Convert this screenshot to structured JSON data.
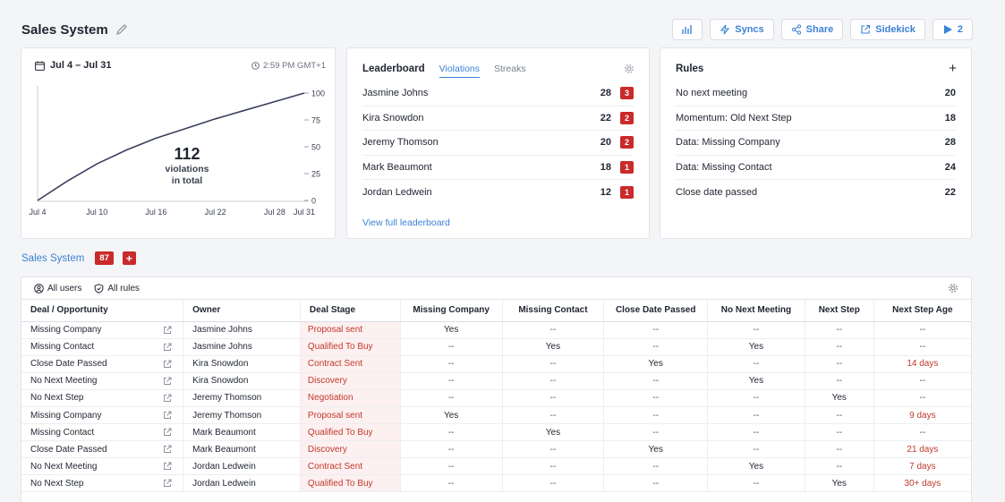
{
  "header": {
    "title": "Sales System",
    "buttons": {
      "syncs": "Syncs",
      "share": "Share",
      "sidekick": "Sidekick",
      "play": "2"
    }
  },
  "chart_card": {
    "date_range": "Jul 4 – Jul 31",
    "time": "2:59 PM GMT+1",
    "total": "112",
    "total_label_1": "violations",
    "total_label_2": "in total"
  },
  "chart_data": {
    "type": "line",
    "x_ticks": [
      "Jul 4",
      "Jul 10",
      "Jul 16",
      "Jul 22",
      "Jul 28",
      "Jul 31"
    ],
    "x_tick_days": [
      0,
      6,
      12,
      18,
      24,
      27
    ],
    "y_ticks": [
      "100",
      "75",
      "50",
      "25",
      "0"
    ],
    "y_tick_values": [
      100,
      75,
      50,
      25,
      0
    ],
    "ylim": [
      0,
      100
    ],
    "x": [
      0,
      3,
      6,
      9,
      12,
      15,
      18,
      21,
      24,
      27
    ],
    "y": [
      0,
      18,
      34,
      47,
      58,
      67,
      76,
      84,
      92,
      100
    ],
    "line_color": "#3a3f5c"
  },
  "leaderboard": {
    "title": "Leaderboard",
    "tabs": [
      "Violations",
      "Streaks"
    ],
    "rows": [
      {
        "name": "Jasmine Johns",
        "value": "28",
        "rank": "3"
      },
      {
        "name": "Kira Snowdon",
        "value": "22",
        "rank": "2"
      },
      {
        "name": "Jeremy Thomson",
        "value": "20",
        "rank": "2"
      },
      {
        "name": "Mark Beaumont",
        "value": "18",
        "rank": "1"
      },
      {
        "name": "Jordan Ledwein",
        "value": "12",
        "rank": "1"
      }
    ],
    "view_link": "View full leaderboard"
  },
  "rules": {
    "title": "Rules",
    "add": "+",
    "rows": [
      {
        "name": "No next meeting",
        "value": "20"
      },
      {
        "name": "Momentum: Old Next Step",
        "value": "18"
      },
      {
        "name": "Data: Missing Company",
        "value": "28"
      },
      {
        "name": "Data: Missing Contact",
        "value": "24"
      },
      {
        "name": "Close date passed",
        "value": "22"
      }
    ]
  },
  "section": {
    "link": "Sales System",
    "count": "87",
    "plus": "+"
  },
  "table": {
    "filters": {
      "users": "All users",
      "rules": "All rules"
    },
    "columns": [
      "Deal / Opportunity",
      "Owner",
      "Deal Stage",
      "Missing Company",
      "Missing Contact",
      "Close Date Passed",
      "No Next Meeting",
      "Next Step",
      "Next Step Age"
    ],
    "rows": [
      [
        "Missing Company",
        "Jasmine Johns",
        "Proposal sent",
        "Yes",
        "--",
        "--",
        "--",
        "--",
        "--"
      ],
      [
        "Missing Contact",
        "Jasmine Johns",
        "Qualified To Buy",
        "--",
        "Yes",
        "--",
        "Yes",
        "--",
        "--"
      ],
      [
        "Close Date Passed",
        "Kira Snowdon",
        "Contract Sent",
        "--",
        "--",
        "Yes",
        "--",
        "--",
        "14 days"
      ],
      [
        "No Next Meeting",
        "Kira Snowdon",
        "Discovery",
        "--",
        "--",
        "--",
        "Yes",
        "--",
        "--"
      ],
      [
        "No Next Step",
        "Jeremy Thomson",
        "Negotiation",
        "--",
        "--",
        "--",
        "--",
        "Yes",
        "--"
      ],
      [
        "Missing Company",
        "Jeremy Thomson",
        "Proposal sent",
        "Yes",
        "--",
        "--",
        "--",
        "--",
        "9 days"
      ],
      [
        "Missing Contact",
        "Mark Beaumont",
        "Qualified To Buy",
        "--",
        "Yes",
        "--",
        "--",
        "--",
        "--"
      ],
      [
        "Close Date Passed",
        "Mark Beaumont",
        "Discovery",
        "--",
        "--",
        "Yes",
        "--",
        "--",
        "21 days"
      ],
      [
        "No Next Meeting",
        "Jordan Ledwein",
        "Contract Sent",
        "--",
        "--",
        "--",
        "Yes",
        "--",
        "7 days"
      ],
      [
        "No Next Step",
        "Jordan Ledwein",
        "Qualified To Buy",
        "--",
        "--",
        "--",
        "--",
        "Yes",
        "30+ days"
      ]
    ]
  },
  "colors": {
    "accent": "#3b82d6",
    "danger": "#c92a2a"
  }
}
